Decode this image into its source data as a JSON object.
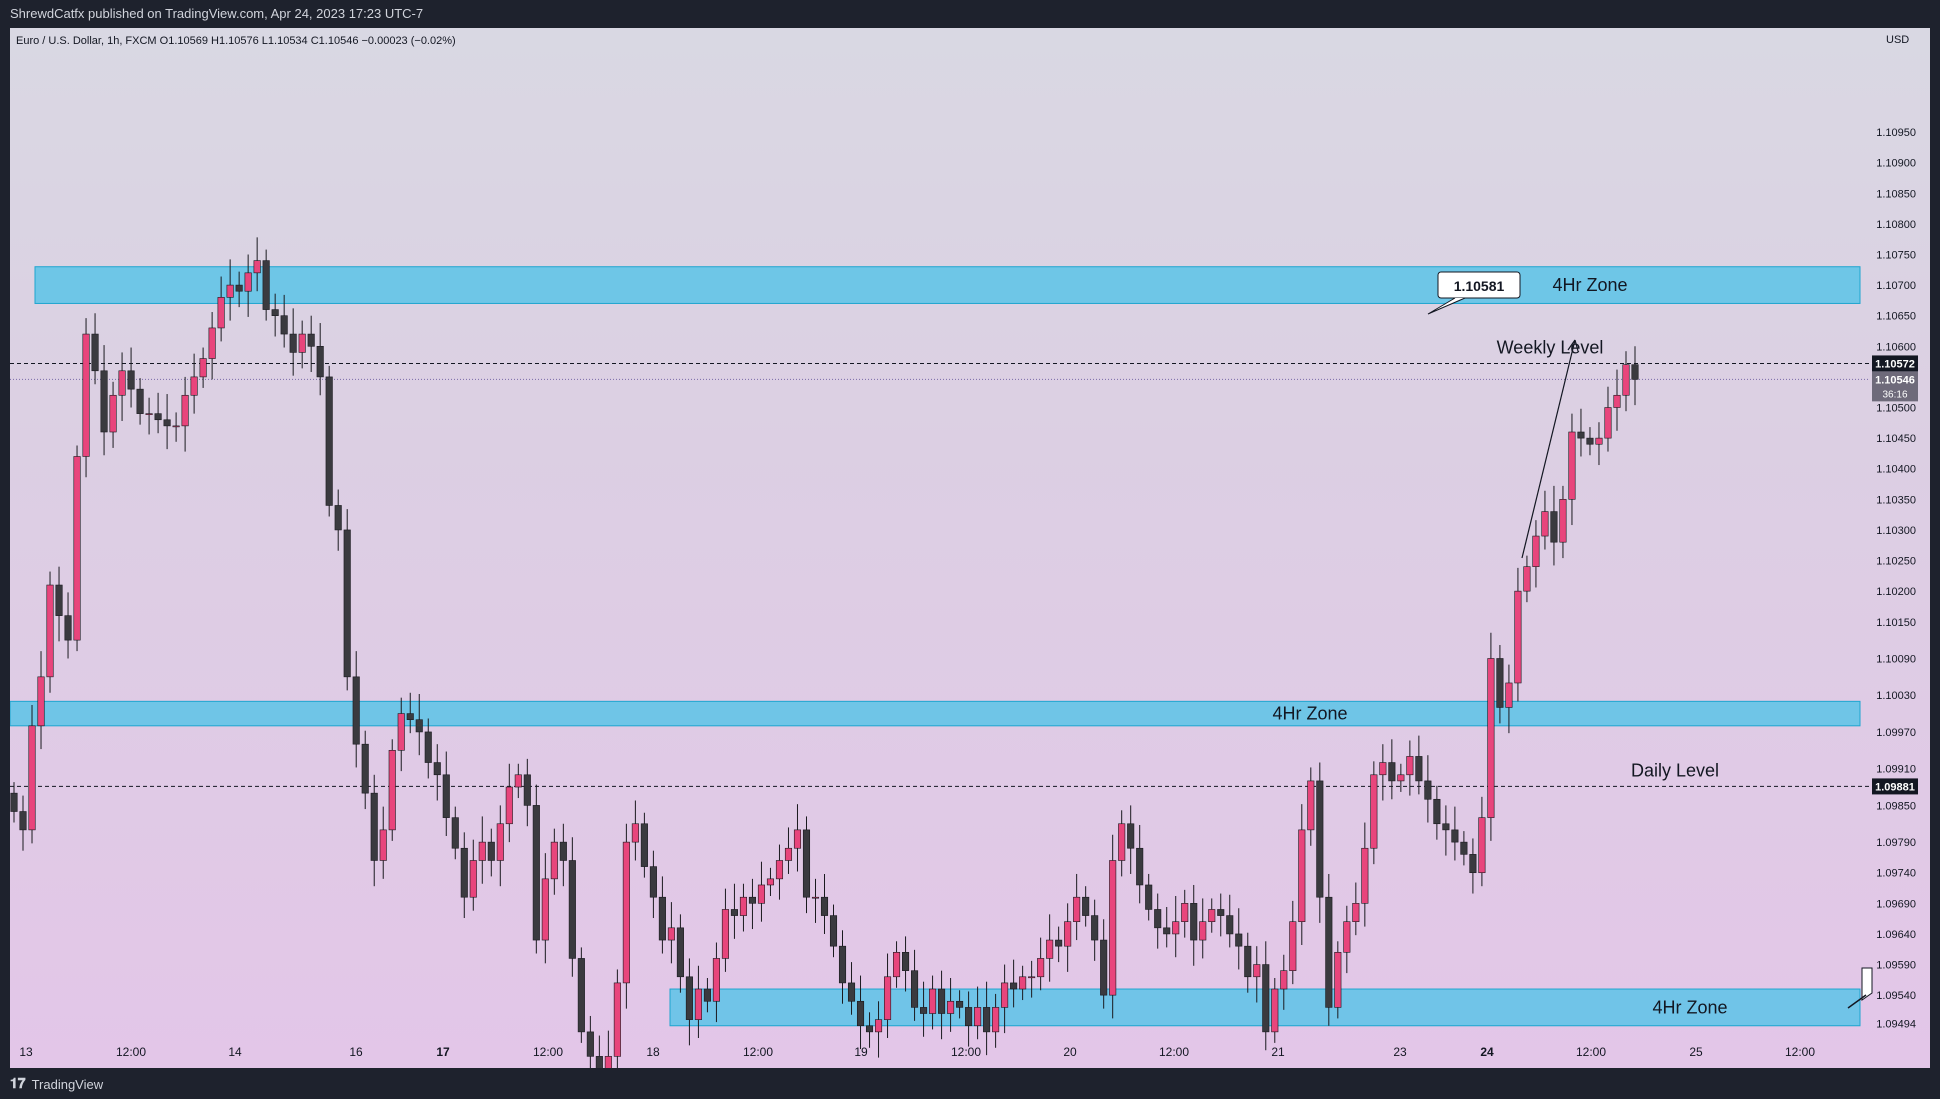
{
  "header": {
    "published": "ShrewdCatfx published on TradingView.com, Apr 24, 2023 17:23 UTC-7"
  },
  "footer": {
    "brand": "TradingView"
  },
  "chart_data": {
    "type": "candlestick",
    "symbol_line": "Euro / U.S. Dollar, 1h, FXCM  O1.10569  H1.10576  L1.10534  C1.10546  −0.00023 (−0.02%)",
    "currency": "USD",
    "ylim": [
      1.0947,
      1.1112
    ],
    "y_ticks": [
      "1.10950",
      "1.10900",
      "1.10850",
      "1.10800",
      "1.10750",
      "1.10700",
      "1.10650",
      "1.10600",
      "1.10500",
      "1.10450",
      "1.10400",
      "1.10350",
      "1.10300",
      "1.10250",
      "1.10200",
      "1.10150",
      "1.10090",
      "1.10030",
      "1.09970",
      "1.09910",
      "1.09850",
      "1.09790",
      "1.09740",
      "1.09690",
      "1.09640",
      "1.09590",
      "1.09540",
      "1.09494"
    ],
    "x_ticks": [
      {
        "label": "13",
        "bold": false
      },
      {
        "label": "12:00",
        "bold": false
      },
      {
        "label": "14",
        "bold": false
      },
      {
        "label": "16",
        "bold": false
      },
      {
        "label": "17",
        "bold": true
      },
      {
        "label": "12:00",
        "bold": false
      },
      {
        "label": "18",
        "bold": false
      },
      {
        "label": "12:00",
        "bold": false
      },
      {
        "label": "19",
        "bold": false
      },
      {
        "label": "12:00",
        "bold": false
      },
      {
        "label": "20",
        "bold": false
      },
      {
        "label": "12:00",
        "bold": false
      },
      {
        "label": "21",
        "bold": false
      },
      {
        "label": "23",
        "bold": false
      },
      {
        "label": "24",
        "bold": true
      },
      {
        "label": "12:00",
        "bold": false
      },
      {
        "label": "25",
        "bold": false
      },
      {
        "label": "12:00",
        "bold": false
      }
    ],
    "zones": [
      {
        "label": "4Hr Zone",
        "from": 1.1067,
        "to": 1.1073
      },
      {
        "label": "4Hr Zone",
        "from": 1.0998,
        "to": 1.1002
      },
      {
        "label": "4Hr Zone",
        "from": 1.0949,
        "to": 1.0955
      }
    ],
    "levels": [
      {
        "label": "Weekly Level",
        "price": 1.10572,
        "price_label": "1.10572"
      },
      {
        "label": "Daily Level",
        "price": 1.09881,
        "price_label": "1.09881"
      }
    ],
    "last_price": {
      "price": 1.10546,
      "label": "1.10546",
      "countdown": "36:16"
    },
    "callout": {
      "label": "1.10581"
    },
    "up_color": "#e8457c",
    "down_color": "#3a3a3f",
    "zone_color": "#4fc3e8",
    "closes": [
      1.0984,
      1.0981,
      1.0998,
      1.1006,
      1.1021,
      1.1016,
      1.1012,
      1.1042,
      1.1062,
      1.1056,
      1.1046,
      1.1052,
      1.1056,
      1.1053,
      1.1049,
      1.1049,
      1.1048,
      1.1047,
      1.1047,
      1.1052,
      1.1055,
      1.1058,
      1.1063,
      1.1068,
      1.107,
      1.1069,
      1.1072,
      1.1074,
      1.1066,
      1.1065,
      1.1062,
      1.1059,
      1.1062,
      1.106,
      1.1055,
      1.1034,
      1.103,
      1.1006,
      1.0995,
      1.0987,
      1.0976,
      1.0981,
      1.0994,
      1.1,
      1.0999,
      1.0997,
      1.0992,
      1.099,
      1.0983,
      1.0978,
      1.097,
      1.0976,
      1.0979,
      1.0976,
      1.0982,
      1.0988,
      1.099,
      1.0985,
      1.0963,
      1.0973,
      1.0979,
      1.0976,
      1.096,
      1.0948,
      1.0944,
      1.094,
      1.0944,
      1.0956,
      1.0979,
      1.0982,
      1.0975,
      1.097,
      1.0963,
      1.0965,
      1.0957,
      1.095,
      1.0955,
      1.0953,
      1.096,
      1.0968,
      1.0967,
      1.097,
      1.0969,
      1.0972,
      1.0973,
      1.0976,
      1.0978,
      1.0981,
      1.097,
      1.097,
      1.0967,
      1.0962,
      1.0956,
      1.0953,
      1.0949,
      1.0948,
      1.095,
      1.0957,
      1.0961,
      1.0958,
      1.0952,
      1.0951,
      1.0955,
      1.0951,
      1.0953,
      1.0952,
      1.0949,
      1.0952,
      1.0948,
      1.0952,
      1.0956,
      1.0955,
      1.0957,
      1.0957,
      1.096,
      1.0963,
      1.0962,
      1.0966,
      1.097,
      1.0967,
      1.0963,
      1.0954,
      1.0976,
      1.0982,
      1.0978,
      1.0972,
      1.0968,
      1.0965,
      1.0964,
      1.0966,
      1.0969,
      1.0963,
      1.0966,
      1.0968,
      1.0967,
      1.0964,
      1.0962,
      1.0957,
      1.0959,
      1.0948,
      1.0955,
      1.0958,
      1.0966,
      1.0981,
      1.0989,
      1.097,
      1.0952,
      1.0961,
      1.0966,
      1.0969,
      1.0978,
      1.099,
      1.0992,
      1.0989,
      1.099,
      1.0993,
      1.0989,
      1.0986,
      1.0982,
      1.0981,
      1.0979,
      1.0977,
      1.0974,
      1.0983,
      1.1009,
      1.1001,
      1.1005,
      1.102,
      1.1024,
      1.1029,
      1.1033,
      1.1028,
      1.1035,
      1.1046,
      1.1045,
      1.1044,
      1.1045,
      1.105,
      1.1052,
      1.1057,
      1.10546
    ]
  }
}
